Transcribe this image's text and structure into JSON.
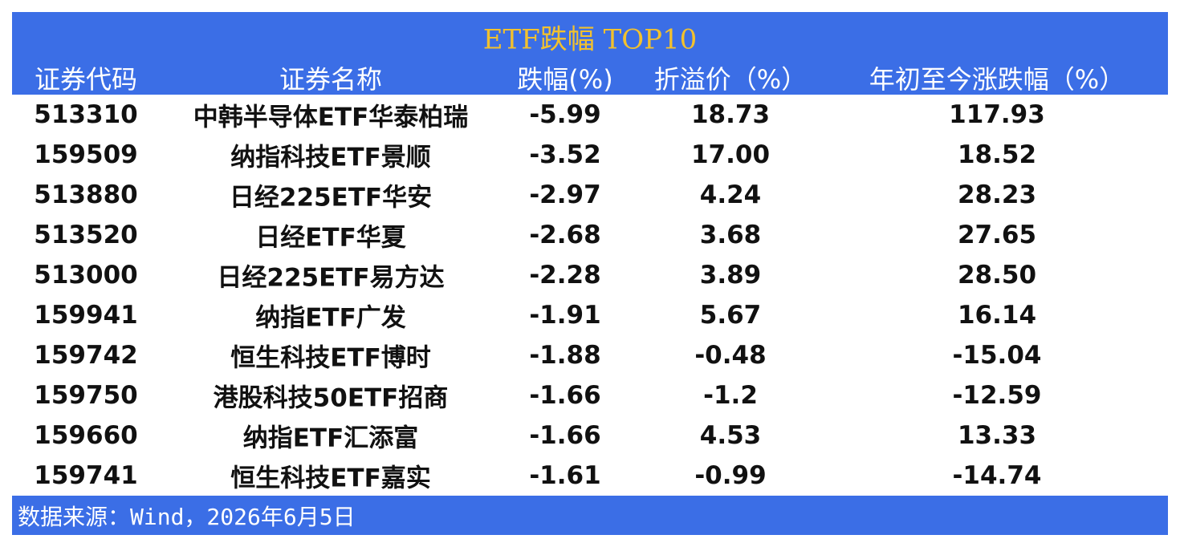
{
  "title": "ETF跌幅 TOP10",
  "table": {
    "header": [
      "证券代码",
      "证券名称",
      "跌幅(%)",
      "折溢价（%）",
      "年初至今涨跌幅（%）"
    ],
    "rows": [
      [
        "513310",
        "中韩半导体ETF华泰柏瑞",
        "-5.99",
        "18.73",
        "117.93"
      ],
      [
        "159509",
        "纳指科技ETF景顺",
        "-3.52",
        "17.00",
        "18.52"
      ],
      [
        "513880",
        "日经225ETF华安",
        "-2.97",
        "4.24",
        "28.23"
      ],
      [
        "513520",
        "日经ETF华夏",
        "-2.68",
        "3.68",
        "27.65"
      ],
      [
        "513000",
        "日经225ETF易方达",
        "-2.28",
        "3.89",
        "28.50"
      ],
      [
        "159941",
        "纳指ETF广发",
        "-1.91",
        "5.67",
        "16.14"
      ],
      [
        "159742",
        "恒生科技ETF博时",
        "-1.88",
        "-0.48",
        "-15.04"
      ],
      [
        "159750",
        "港股科技50ETF招商",
        "-1.66",
        "-1.2",
        "-12.59"
      ],
      [
        "159660",
        "纳指ETF汇添富",
        "-1.66",
        "4.53",
        "13.33"
      ],
      [
        "159741",
        "恒生科技ETF嘉实",
        "-1.61",
        "-0.99",
        "-14.74"
      ]
    ]
  },
  "footer": "数据来源：Wind，2026年6月5日"
}
